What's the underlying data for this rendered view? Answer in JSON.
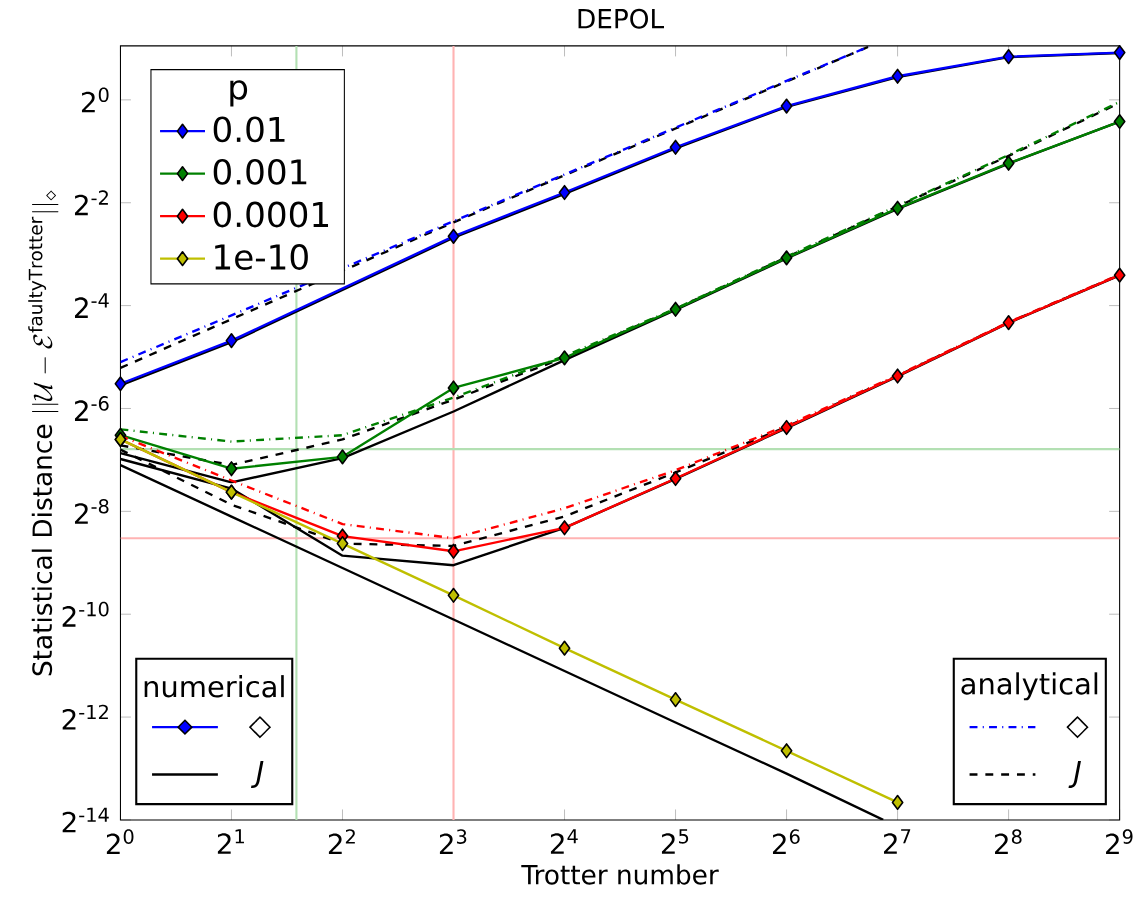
{
  "chart_data": {
    "type": "line",
    "title": "DEPOL",
    "xlabel": "Trotter number",
    "ylabel": "\\mbox{Statistical Distance }||\\mathcal{U}-\\mathcal{E}^{\\mathrm{faultyTrotter}}||_{\\diamond}",
    "log": "xy",
    "grid": false,
    "legend": "top left",
    "legend_title": "p",
    "xlim": [
      1,
      512
    ],
    "ylim": [
      6.103515625e-05,
      2.07
    ],
    "xticks": [
      {
        "value": 1,
        "label": "2$^{0}$"
      },
      {
        "value": 2,
        "label": "2$^{1}$"
      },
      {
        "value": 4,
        "label": "2$^{2}$"
      },
      {
        "value": 8,
        "label": "2$^{3}$"
      },
      {
        "value": 16,
        "label": "2$^{4}$"
      },
      {
        "value": 32,
        "label": "2$^{5}$"
      },
      {
        "value": 64,
        "label": "2$^{6}$"
      },
      {
        "value": 128,
        "label": "2$^{7}$"
      },
      {
        "value": 256,
        "label": "2$^{8}$"
      },
      {
        "value": 512,
        "label": "2$^{9}$"
      }
    ],
    "yticks": [
      {
        "value": 6.103515625e-05,
        "label": "2$^{-14}$"
      },
      {
        "value": 0.000244140625,
        "label": "2$^{-12}$"
      },
      {
        "value": 0.0009765625,
        "label": "2$^{-10}$"
      },
      {
        "value": 0.00390625,
        "label": "2$^{-8}$"
      },
      {
        "value": 0.015625,
        "label": "2$^{-6}$"
      },
      {
        "value": 0.0625,
        "label": "2$^{-4}$"
      },
      {
        "value": 0.25,
        "label": "2$^{-2}$"
      },
      {
        "value": 1,
        "label": "2$^{0}$"
      }
    ],
    "ref_lines": [
      {
        "axis": "x",
        "value": 3,
        "color": "#b3e0b3"
      },
      {
        "axis": "x",
        "value": 8,
        "color": "#ffb3b3"
      },
      {
        "axis": "y",
        "value": 0.00903,
        "color": "#b3e0b3"
      },
      {
        "axis": "y",
        "value": 0.00272,
        "color": "#ffb3b3"
      }
    ],
    "annotations": [
      "numerical",
      "◇",
      "J",
      "analytical",
      "◇",
      "J"
    ],
    "series": [
      {
        "color": "#000000",
        "line_style": "dashed",
        "marker": "none",
        "x": [
          1,
          2,
          4,
          8,
          16,
          32,
          64,
          107
        ],
        "values": [
          0.027,
          0.052,
          null,
          0.192,
          0.362,
          0.68,
          1.28,
          2.05
        ]
      },
      {
        "color": "#0000ff",
        "line_style": "dashdot",
        "marker": "none",
        "x": [
          1,
          2,
          4,
          8,
          16,
          32,
          64,
          107
        ],
        "values": [
          0.0292,
          0.0548,
          null,
          0.195,
          0.366,
          0.688,
          1.292,
          2.05
        ]
      },
      {
        "color": "#000000",
        "line_style": "solid",
        "marker": "none",
        "x": [
          1,
          2,
          4,
          8,
          16,
          32,
          64,
          128,
          256,
          512
        ],
        "values": [
          0.0213,
          0.0382,
          null,
          0.156,
          0.282,
          0.52,
          0.91,
          1.36,
          1.78,
          1.88
        ]
      },
      {
        "name": "0.01",
        "color": "#0000ff",
        "line_style": "solid",
        "marker": "diamond",
        "x": [
          1,
          2,
          4,
          8,
          16,
          32,
          64,
          128,
          256,
          512
        ],
        "values": [
          0.0218,
          0.039,
          null,
          0.159,
          0.287,
          0.528,
          0.92,
          1.375,
          1.79,
          1.892
        ]
      },
      {
        "color": "#000000",
        "line_style": "dashed",
        "marker": "none",
        "x": [
          1,
          2,
          4,
          8,
          16,
          32,
          64,
          128,
          256,
          512
        ],
        "values": [
          0.0095,
          0.0073,
          0.0103,
          0.0176,
          0.031,
          0.0598,
          0.12,
          0.238,
          0.47,
          0.96
        ]
      },
      {
        "color": "#008000",
        "line_style": "dashdot",
        "marker": "none",
        "x": [
          1,
          2,
          4,
          8,
          16,
          32,
          64,
          128,
          256,
          512
        ],
        "values": [
          0.0118,
          0.01,
          0.0109,
          0.0181,
          0.0317,
          0.06,
          0.121,
          0.24,
          0.476,
          0.973
        ]
      },
      {
        "color": "#000000",
        "line_style": "solid",
        "marker": "none",
        "x": [
          1,
          2,
          4,
          8,
          16,
          32,
          64,
          128,
          256,
          512
        ],
        "values": [
          0.00855,
          0.00577,
          0.008,
          0.015,
          0.03,
          0.059,
          0.118,
          0.23,
          0.424,
          0.745
        ]
      },
      {
        "name": "0.001",
        "color": "#008000",
        "line_style": "solid",
        "marker": "diamond",
        "x": [
          1,
          2,
          4,
          8,
          16,
          32,
          64,
          128,
          256,
          512
        ],
        "values": [
          0.0109,
          0.00694,
          0.00814,
          0.0206,
          0.0309,
          0.0595,
          0.119,
          0.232,
          0.426,
          0.747
        ]
      },
      {
        "color": "#000000",
        "line_style": "dashed",
        "marker": "none",
        "x": [
          1,
          2,
          4,
          8,
          16,
          32,
          64,
          128,
          256,
          512
        ],
        "values": [
          0.00898,
          0.00427,
          0.00253,
          0.00245,
          0.00365,
          0.0066,
          0.0122,
          0.0243,
          0.0498,
          0.0945
        ]
      },
      {
        "color": "#ff0000",
        "line_style": "dashdot",
        "marker": "none",
        "x": [
          1,
          2,
          4,
          8,
          16,
          32,
          64,
          128,
          256,
          512
        ],
        "values": [
          0.0108,
          0.00592,
          0.00329,
          0.00272,
          0.00407,
          0.0068,
          0.0124,
          0.0245,
          0.05,
          0.095
        ]
      },
      {
        "color": "#000000",
        "line_style": "solid",
        "marker": "none",
        "x": [
          1,
          2,
          4,
          8,
          16,
          32,
          64,
          128,
          256,
          512
        ],
        "values": [
          0.00791,
          0.00531,
          0.00215,
          0.00189,
          0.00313,
          0.00605,
          0.012,
          0.0241,
          0.0495,
          0.094
        ]
      },
      {
        "name": "0.0001",
        "color": "#ff0000",
        "line_style": "solid",
        "marker": "diamond",
        "x": [
          1,
          2,
          4,
          8,
          16,
          32,
          64,
          128,
          256,
          512
        ],
        "values": [
          0.0103,
          0.00506,
          0.0028,
          0.00228,
          0.00313,
          0.00608,
          0.0121,
          0.0242,
          0.0497,
          0.0942
        ]
      },
      {
        "color": "#000000",
        "line_style": "solid",
        "marker": "none",
        "x": [
          1,
          2,
          4,
          8,
          16,
          32,
          64,
          117
        ],
        "values": [
          0.00729,
          0.00364,
          0.00182,
          0.000909,
          0.000454,
          0.000227,
          0.000114,
          6.11e-05
        ]
      },
      {
        "name": "1e-10",
        "color": "#bfbf00",
        "line_style": "solid",
        "marker": "diamond",
        "x": [
          1,
          2,
          4,
          8,
          16,
          32,
          64,
          128
        ],
        "values": [
          0.0103,
          0.00506,
          0.00253,
          0.00126,
          0.000618,
          0.000309,
          0.000155,
          7.73e-05
        ]
      }
    ]
  }
}
